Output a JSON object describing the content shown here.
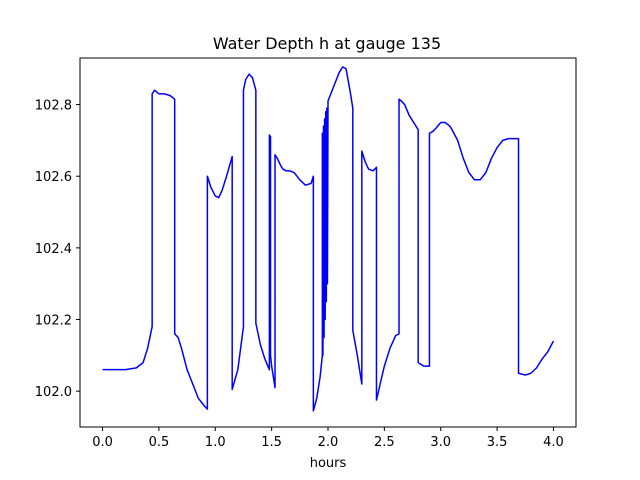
{
  "chart_data": {
    "type": "line",
    "title": "Water Depth h at gauge 135",
    "xlabel": "hours",
    "ylabel": "",
    "xlim": [
      -0.2,
      4.2
    ],
    "ylim": [
      101.9,
      102.93
    ],
    "xticks": [
      0.0,
      0.5,
      1.0,
      1.5,
      2.0,
      2.5,
      3.0,
      3.5,
      4.0
    ],
    "xtick_labels": [
      "0.0",
      "0.5",
      "1.0",
      "1.5",
      "2.0",
      "2.5",
      "3.0",
      "3.5",
      "4.0"
    ],
    "yticks": [
      102.0,
      102.2,
      102.4,
      102.6,
      102.8
    ],
    "ytick_labels": [
      "102.0",
      "102.2",
      "102.4",
      "102.6",
      "102.8"
    ],
    "grid": false,
    "series": [
      {
        "color": "#0000ff",
        "x": [
          0.0,
          0.2,
          0.3,
          0.36,
          0.4,
          0.44,
          0.44,
          0.46,
          0.5,
          0.55,
          0.6,
          0.64,
          0.64,
          0.67,
          0.7,
          0.75,
          0.8,
          0.85,
          0.9,
          0.93,
          0.93,
          0.96,
          1.0,
          1.03,
          1.06,
          1.1,
          1.15,
          1.15,
          1.2,
          1.25,
          1.25,
          1.27,
          1.3,
          1.33,
          1.36,
          1.36,
          1.4,
          1.44,
          1.48,
          1.48,
          1.49,
          1.49,
          1.5,
          1.53,
          1.53,
          1.55,
          1.58,
          1.6,
          1.63,
          1.66,
          1.7,
          1.75,
          1.8,
          1.85,
          1.87,
          1.87,
          1.9,
          1.93,
          1.95,
          1.95,
          1.955,
          1.96,
          1.965,
          1.97,
          1.975,
          1.98,
          1.985,
          1.99,
          1.995,
          2.0,
          2.0,
          2.05,
          2.1,
          2.13,
          2.16,
          2.2,
          2.22,
          2.22,
          2.26,
          2.3,
          2.3,
          2.33,
          2.36,
          2.4,
          2.43,
          2.43,
          2.47,
          2.5,
          2.55,
          2.6,
          2.63,
          2.63,
          2.65,
          2.68,
          2.72,
          2.76,
          2.8,
          2.8,
          2.85,
          2.9,
          2.9,
          2.93,
          2.96,
          3.0,
          3.04,
          3.08,
          3.1,
          3.15,
          3.2,
          3.25,
          3.3,
          3.35,
          3.4,
          3.45,
          3.5,
          3.55,
          3.6,
          3.65,
          3.69,
          3.69,
          3.75,
          3.8,
          3.85,
          3.9,
          3.95,
          4.0
        ],
        "y": [
          102.06,
          102.06,
          102.065,
          102.08,
          102.12,
          102.18,
          102.83,
          102.84,
          102.83,
          102.83,
          102.825,
          102.815,
          102.16,
          102.15,
          102.12,
          102.06,
          102.02,
          101.98,
          101.96,
          101.95,
          102.6,
          102.57,
          102.545,
          102.54,
          102.56,
          102.6,
          102.655,
          102.005,
          102.06,
          102.18,
          102.84,
          102.87,
          102.885,
          102.875,
          102.84,
          102.19,
          102.13,
          102.09,
          102.06,
          102.715,
          102.71,
          102.1,
          102.07,
          102.01,
          102.66,
          102.65,
          102.63,
          102.62,
          102.615,
          102.615,
          102.61,
          102.59,
          102.575,
          102.58,
          102.6,
          101.945,
          101.98,
          102.04,
          102.1,
          102.72,
          102.1,
          102.74,
          102.15,
          102.76,
          102.2,
          102.78,
          102.25,
          102.79,
          102.3,
          102.8,
          102.81,
          102.85,
          102.89,
          102.905,
          102.9,
          102.83,
          102.79,
          102.17,
          102.1,
          102.02,
          102.67,
          102.64,
          102.62,
          102.615,
          102.625,
          101.975,
          102.03,
          102.07,
          102.12,
          102.155,
          102.16,
          102.815,
          102.81,
          102.8,
          102.77,
          102.75,
          102.73,
          102.08,
          102.07,
          102.07,
          102.72,
          102.725,
          102.735,
          102.75,
          102.75,
          102.74,
          102.73,
          102.7,
          102.65,
          102.61,
          102.59,
          102.59,
          102.61,
          102.65,
          102.68,
          102.7,
          102.705,
          102.705,
          102.705,
          102.05,
          102.045,
          102.05,
          102.065,
          102.09,
          102.11,
          102.14
        ]
      }
    ]
  }
}
